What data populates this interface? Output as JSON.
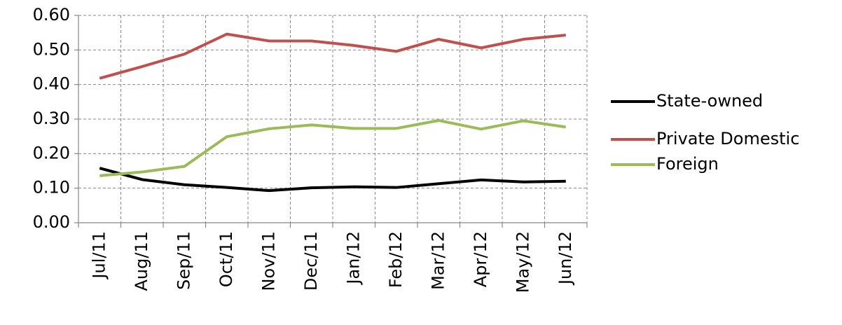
{
  "chart_data": {
    "type": "line",
    "categories": [
      "Jul/11",
      "Aug/11",
      "Sep/11",
      "Oct/11",
      "Nov/11",
      "Dec/11",
      "Jan/12",
      "Feb/12",
      "Mar/12",
      "Apr/12",
      "May/12",
      "Jun/12"
    ],
    "series": [
      {
        "name": "State-owned",
        "color": "#000000",
        "values": [
          0.158,
          0.125,
          0.11,
          0.102,
          0.093,
          0.101,
          0.104,
          0.102,
          0.113,
          0.124,
          0.118,
          0.12
        ]
      },
      {
        "name": "Private Domestic",
        "color": "#c0504d",
        "values": [
          0.418,
          0.452,
          0.488,
          0.546,
          0.526,
          0.526,
          0.513,
          0.496,
          0.531,
          0.506,
          0.531,
          0.543
        ]
      },
      {
        "name": "Foreign",
        "color": "#9bbb59",
        "values": [
          0.136,
          0.147,
          0.163,
          0.249,
          0.272,
          0.283,
          0.273,
          0.273,
          0.296,
          0.271,
          0.295,
          0.277
        ]
      }
    ],
    "ylim": [
      0,
      0.6
    ],
    "yticks": [
      {
        "value": 0,
        "label": "0.00"
      },
      {
        "value": 0.1,
        "label": "0.10"
      },
      {
        "value": 0.2,
        "label": "0.20"
      },
      {
        "value": 0.3,
        "label": "0.30"
      },
      {
        "value": 0.4,
        "label": "0.40"
      },
      {
        "value": 0.5,
        "label": "0.50"
      },
      {
        "value": 0.6,
        "label": "0.60"
      }
    ],
    "grid": true,
    "legend": "right"
  }
}
